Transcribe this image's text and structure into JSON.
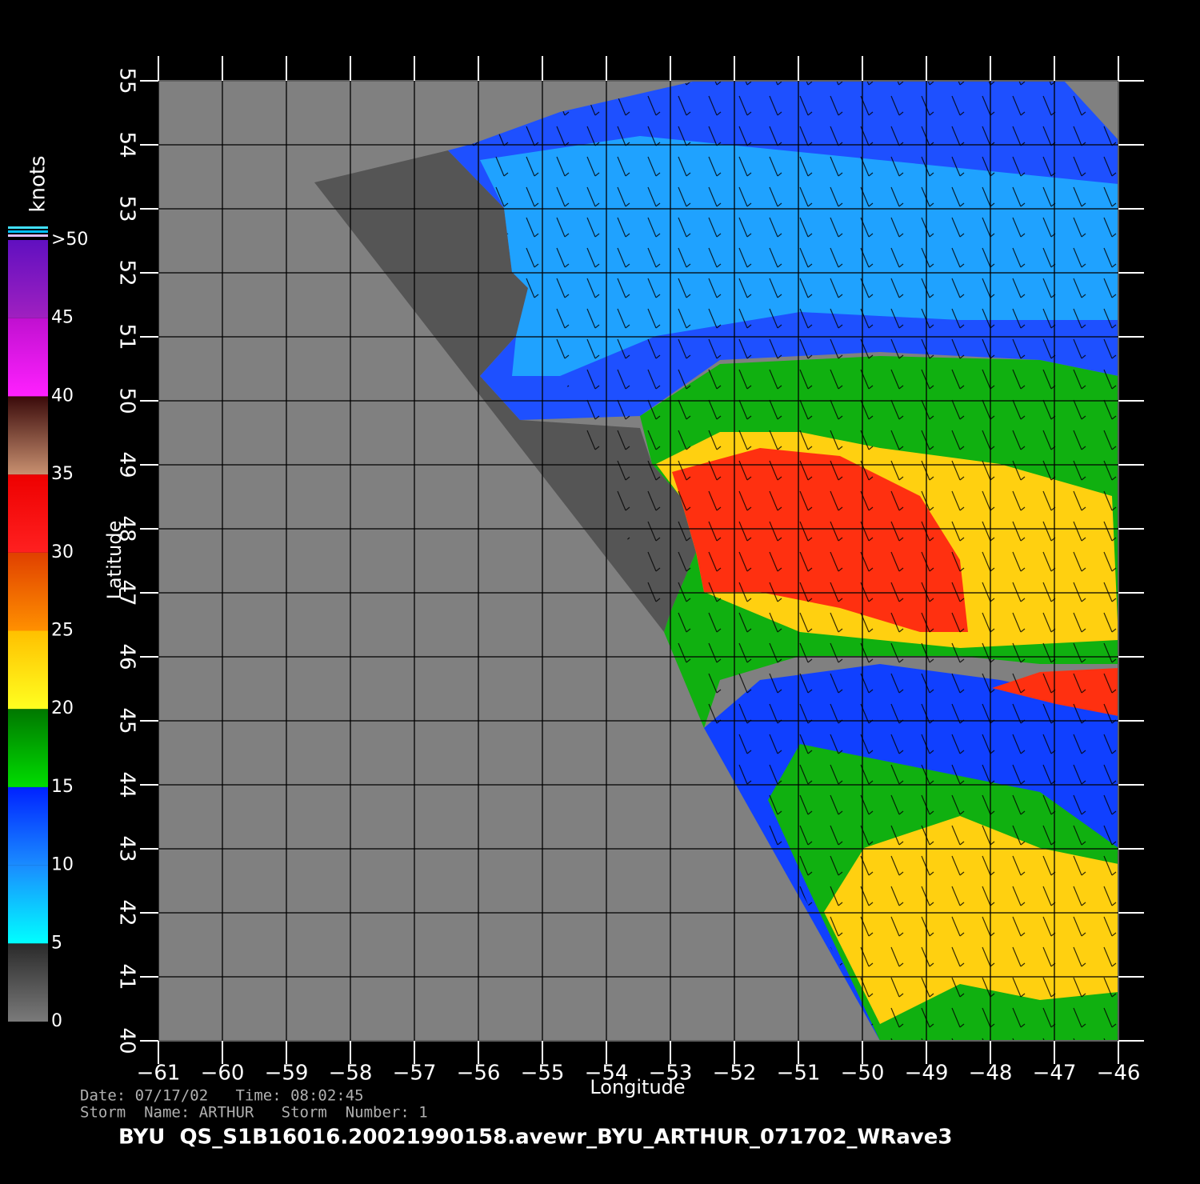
{
  "map": {
    "xlim": [
      -61,
      -46
    ],
    "ylim": [
      40,
      55
    ],
    "xticks": [
      {
        "value": -61,
        "label": "−61"
      },
      {
        "value": -60,
        "label": "−60"
      },
      {
        "value": -59,
        "label": "−59"
      },
      {
        "value": -58,
        "label": "−58"
      },
      {
        "value": -57,
        "label": "−57"
      },
      {
        "value": -56,
        "label": "−56"
      },
      {
        "value": -55,
        "label": "−55"
      },
      {
        "value": -54,
        "label": "−54"
      },
      {
        "value": -53,
        "label": "−53"
      },
      {
        "value": -52,
        "label": "−52"
      },
      {
        "value": -51,
        "label": "−51"
      },
      {
        "value": -50,
        "label": "−50"
      },
      {
        "value": -49,
        "label": "−49"
      },
      {
        "value": -48,
        "label": "−48"
      },
      {
        "value": -47,
        "label": "−47"
      },
      {
        "value": -46,
        "label": "−46"
      }
    ],
    "yticks": [
      40,
      41,
      42,
      43,
      44,
      45,
      46,
      47,
      48,
      49,
      50,
      51,
      52,
      53,
      54,
      55
    ],
    "xlabel": "Longitude",
    "ylabel": "Latitude",
    "grid": true
  },
  "colorbar": {
    "title": "knots",
    "lim": [
      0,
      50
    ],
    "ticks": [
      0,
      5,
      10,
      15,
      20,
      25,
      30,
      35,
      40,
      45,
      {
        "value": 50,
        "label": ">50"
      }
    ],
    "colors": [
      [
        "#7a7a7a",
        "#2a2a2a"
      ],
      [
        "#00ffff",
        "#1a8cff"
      ],
      [
        "#1a8cff",
        "#0022ff"
      ],
      [
        "#00dd00",
        "#007700"
      ],
      [
        "#ffff20",
        "#ffc000"
      ],
      [
        "#ff9000",
        "#e04000"
      ],
      [
        "#ff2020",
        "#ee0000"
      ],
      [
        "#c89070",
        "#3a0a0a"
      ],
      [
        "#ff20ff",
        "#c010d0"
      ],
      [
        "#a020c0",
        "#6010c0"
      ]
    ]
  },
  "footer": {
    "date_line": "Date: 07/17/02   Time: 08:02:45",
    "storm_line": "Storm  Name: ARTHUR   Storm  Number: 1",
    "file_line": "BYU  QS_S1B16016.20021990158.avewr_BYU_ARTHUR_071702_WRave3"
  }
}
